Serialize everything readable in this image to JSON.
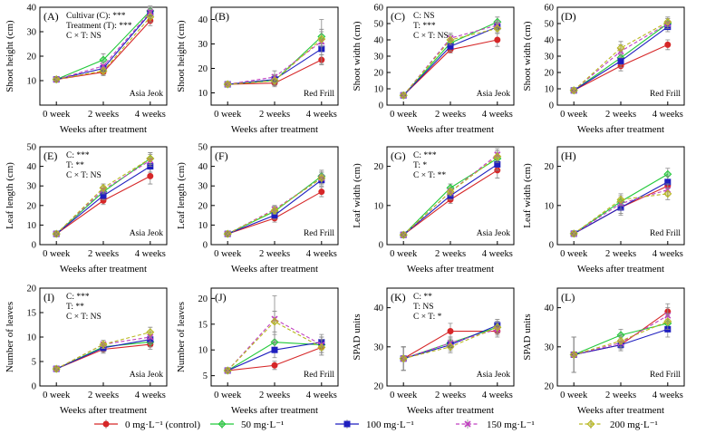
{
  "chart_data": {
    "type": "line",
    "x_categories": [
      "0 week",
      "2 weeks",
      "4 weeks"
    ],
    "series_defs": [
      {
        "key": "0",
        "name": "0 mg·L⁻¹ (control)",
        "color": "#d62728",
        "marker": "circle",
        "dash": "solid"
      },
      {
        "key": "50",
        "name": "50 mg·L⁻¹",
        "color": "#22c93a",
        "marker": "diamond",
        "dash": "solid"
      },
      {
        "key": "100",
        "name": "100 mg·L⁻¹",
        "color": "#1f1fbf",
        "marker": "square",
        "dash": "solid"
      },
      {
        "key": "150",
        "name": "150 mg·L⁻¹",
        "color": "#c040c0",
        "marker": "x",
        "dash": "dash"
      },
      {
        "key": "200",
        "name": "200 mg·L⁻¹",
        "color": "#b8b820",
        "marker": "diamond",
        "dash": "dash"
      }
    ],
    "panels": [
      {
        "id": "A",
        "label": "(A)",
        "ylabel": "Shoot height (cm)",
        "xlabel": "Weeks after treatment",
        "ylim": [
          0,
          40
        ],
        "yticks": [
          10,
          20,
          30,
          40
        ],
        "note": "Asia Jeok",
        "stats": [
          "Cultivar (C): ***",
          "Treatment (T): ***",
          "C × T: NS"
        ],
        "series": {
          "0": [
            10.5,
            13.5,
            34.5
          ],
          "50": [
            10.5,
            18.5,
            38.5
          ],
          "100": [
            10.5,
            15,
            37.5
          ],
          "150": [
            10.5,
            16,
            38
          ],
          "200": [
            10.5,
            14,
            36
          ]
        },
        "err": {
          "0": [
            0.5,
            1.5,
            2
          ],
          "50": [
            0.5,
            2.5,
            2
          ],
          "100": [
            0.5,
            1.5,
            2
          ],
          "150": [
            0.5,
            1.5,
            2
          ],
          "200": [
            0.5,
            1.5,
            2
          ]
        }
      },
      {
        "id": "B",
        "label": "(B)",
        "ylabel": "Shoot height (cm)",
        "xlabel": "Weeks after treatment",
        "ylim": [
          5,
          45
        ],
        "yticks": [
          10,
          20,
          30,
          40
        ],
        "note": "Red Frill",
        "stats": [],
        "series": {
          "0": [
            13.5,
            14,
            23.5
          ],
          "50": [
            13.5,
            15,
            33
          ],
          "100": [
            13.5,
            15.5,
            28
          ],
          "150": [
            13.5,
            16.5,
            31
          ],
          "200": [
            13.5,
            15,
            32
          ]
        },
        "err": {
          "0": [
            1,
            1.5,
            2
          ],
          "50": [
            1,
            2,
            3
          ],
          "100": [
            1,
            2,
            2.5
          ],
          "150": [
            1,
            2.5,
            9
          ],
          "200": [
            1,
            2,
            3
          ]
        }
      },
      {
        "id": "C",
        "label": "(C)",
        "ylabel": "Shoot width (cm)",
        "xlabel": "Weeks after treatment",
        "ylim": [
          0,
          60
        ],
        "yticks": [
          0,
          10,
          20,
          30,
          40,
          50,
          60
        ],
        "note": "Asia Jeok",
        "stats": [
          "C: NS",
          "T: ***",
          "C × T: NS"
        ],
        "series": {
          "0": [
            6,
            34,
            40
          ],
          "50": [
            6,
            38,
            51
          ],
          "100": [
            6,
            36,
            48
          ],
          "150": [
            6,
            41,
            49
          ],
          "200": [
            6,
            40,
            47
          ]
        },
        "err": {
          "0": [
            1,
            2,
            4
          ],
          "50": [
            1,
            3,
            3
          ],
          "100": [
            1,
            3,
            3
          ],
          "150": [
            1,
            3,
            3
          ],
          "200": [
            1,
            3,
            3
          ]
        }
      },
      {
        "id": "D",
        "label": "(D)",
        "ylabel": "Shoot width (cm)",
        "xlabel": "Weeks after treatment",
        "ylim": [
          0,
          60
        ],
        "yticks": [
          0,
          10,
          20,
          30,
          40,
          50,
          60
        ],
        "note": "Red Frill",
        "stats": [],
        "series": {
          "0": [
            9,
            24,
            37
          ],
          "50": [
            9,
            29,
            50
          ],
          "100": [
            9,
            27,
            48
          ],
          "150": [
            9,
            33,
            50
          ],
          "200": [
            9,
            35,
            51
          ]
        },
        "err": {
          "0": [
            1.5,
            3,
            3
          ],
          "50": [
            1.5,
            4,
            3
          ],
          "100": [
            1.5,
            4,
            3
          ],
          "150": [
            1.5,
            4,
            3
          ],
          "200": [
            1.5,
            4,
            3
          ]
        }
      },
      {
        "id": "E",
        "label": "(E)",
        "ylabel": "Leaf length (cm)",
        "xlabel": "Weeks after treatment",
        "ylim": [
          0,
          50
        ],
        "yticks": [
          0,
          10,
          20,
          30,
          40,
          50
        ],
        "note": "Asia Jeok",
        "stats": [
          "C: ***",
          "T: **",
          "C × T: NS"
        ],
        "series": {
          "0": [
            5.5,
            22.5,
            35
          ],
          "50": [
            5.5,
            27,
            44
          ],
          "100": [
            5.5,
            25,
            40
          ],
          "150": [
            5.5,
            28,
            43
          ],
          "200": [
            5.5,
            29,
            44
          ]
        },
        "err": {
          "0": [
            0.5,
            2,
            4
          ],
          "50": [
            0.5,
            2,
            3
          ],
          "100": [
            0.5,
            2,
            3
          ],
          "150": [
            0.5,
            2,
            3
          ],
          "200": [
            0.5,
            2,
            3
          ]
        }
      },
      {
        "id": "F",
        "label": "(F)",
        "ylabel": "Leaf length (cm)",
        "xlabel": "Weeks after treatment",
        "ylim": [
          0,
          50
        ],
        "yticks": [
          0,
          10,
          20,
          30,
          40,
          50
        ],
        "note": "Red Frill",
        "stats": [],
        "series": {
          "0": [
            5.5,
            13.5,
            27
          ],
          "50": [
            5.5,
            17,
            35
          ],
          "100": [
            5.5,
            15,
            33
          ],
          "150": [
            5.5,
            18,
            34
          ],
          "200": [
            5.5,
            17.5,
            34
          ]
        },
        "err": {
          "0": [
            0.5,
            2,
            2.5
          ],
          "50": [
            0.5,
            2,
            3
          ],
          "100": [
            0.5,
            2,
            3
          ],
          "150": [
            0.5,
            2,
            3
          ],
          "200": [
            0.5,
            2,
            3
          ]
        }
      },
      {
        "id": "G",
        "label": "(G)",
        "ylabel": "Leaf width (cm)",
        "xlabel": "Weeks after treatment",
        "ylim": [
          0,
          25
        ],
        "yticks": [
          0,
          10,
          20
        ],
        "note": "Asia Jeok",
        "stats": [
          "C: ***",
          "T: *",
          "C × T: **"
        ],
        "series": {
          "0": [
            2.5,
            11.5,
            19
          ],
          "50": [
            2.5,
            14.5,
            22
          ],
          "100": [
            2.5,
            12.5,
            20.5
          ],
          "150": [
            2.5,
            13.5,
            23
          ],
          "200": [
            2.5,
            13.5,
            22.5
          ]
        },
        "err": {
          "0": [
            0.3,
            1,
            2
          ],
          "50": [
            0.3,
            1,
            1.5
          ],
          "100": [
            0.3,
            1,
            1.5
          ],
          "150": [
            0.3,
            1,
            1.5
          ],
          "200": [
            0.3,
            1,
            1.5
          ]
        }
      },
      {
        "id": "H",
        "label": "(H)",
        "ylabel": "Leaf width (cm)",
        "xlabel": "Weeks after treatment",
        "ylim": [
          0,
          25
        ],
        "yticks": [
          0,
          10,
          20
        ],
        "note": "Red Frill",
        "stats": [],
        "series": {
          "0": [
            2.8,
            9.5,
            15
          ],
          "50": [
            2.8,
            11,
            18
          ],
          "100": [
            2.8,
            9.5,
            16
          ],
          "150": [
            2.8,
            10.5,
            14
          ],
          "200": [
            2.8,
            11.5,
            13
          ]
        },
        "err": {
          "0": [
            0.3,
            2,
            1.5
          ],
          "50": [
            0.3,
            1.5,
            1.5
          ],
          "100": [
            0.3,
            1.5,
            1.5
          ],
          "150": [
            0.3,
            1.5,
            1.5
          ],
          "200": [
            0.3,
            1.5,
            1.5
          ]
        }
      },
      {
        "id": "I",
        "label": "(I)",
        "ylabel": "Number of leaves",
        "xlabel": "Weeks after treatment",
        "ylim": [
          0,
          20
        ],
        "yticks": [
          0,
          5,
          10,
          15,
          20
        ],
        "note": "Asia Jeok",
        "stats": [
          "C: ***",
          "T: **",
          "C × T: NS"
        ],
        "series": {
          "0": [
            3.5,
            7.5,
            8.5
          ],
          "50": [
            3.5,
            8,
            9
          ],
          "100": [
            3.5,
            7.8,
            9.5
          ],
          "150": [
            3.5,
            8.5,
            10
          ],
          "200": [
            3.5,
            8.5,
            11
          ]
        },
        "err": {
          "0": [
            0.3,
            0.8,
            1
          ],
          "50": [
            0.3,
            0.8,
            1
          ],
          "100": [
            0.3,
            0.8,
            1
          ],
          "150": [
            0.3,
            0.8,
            1
          ],
          "200": [
            0.3,
            0.8,
            1
          ]
        }
      },
      {
        "id": "J",
        "label": "(J)",
        "ylabel": "Number of leaves",
        "xlabel": "Weeks after treatment",
        "ylim": [
          3,
          22
        ],
        "yticks": [
          5,
          10,
          15,
          20
        ],
        "note": "Red Frill",
        "stats": [],
        "series": {
          "0": [
            6,
            7,
            10.5
          ],
          "50": [
            6,
            11.5,
            11
          ],
          "100": [
            6,
            10,
            11.5
          ],
          "150": [
            6,
            16,
            11
          ],
          "200": [
            6,
            15.5,
            10.5
          ]
        },
        "err": {
          "0": [
            0.3,
            0.8,
            1.5
          ],
          "50": [
            0.3,
            1.5,
            1.5
          ],
          "100": [
            0.3,
            1.5,
            1.5
          ],
          "150": [
            0.3,
            4.5,
            1.5
          ],
          "200": [
            0.3,
            2,
            1.5
          ]
        }
      },
      {
        "id": "K",
        "label": "(K)",
        "ylabel": "SPAD units",
        "xlabel": "Weeks after treatment",
        "ylim": [
          20,
          45
        ],
        "yticks": [
          20,
          30,
          40
        ],
        "note": "Asia Jeok",
        "stats": [
          "C: **",
          "T: NS",
          "C × T: *"
        ],
        "series": {
          "0": [
            27,
            34,
            34
          ],
          "50": [
            27,
            31,
            35
          ],
          "100": [
            27,
            30.5,
            35.5
          ],
          "150": [
            27,
            31,
            34.5
          ],
          "200": [
            27,
            30,
            35
          ]
        },
        "err": {
          "0": [
            3,
            2,
            1.5
          ],
          "50": [
            3,
            1.5,
            1.5
          ],
          "100": [
            3,
            1.5,
            1.5
          ],
          "150": [
            3,
            1.5,
            1.5
          ],
          "200": [
            3,
            1.5,
            1.5
          ]
        }
      },
      {
        "id": "L",
        "label": "(L)",
        "ylabel": "SPAD units",
        "xlabel": "Weeks after treatment",
        "ylim": [
          20,
          45
        ],
        "yticks": [
          20,
          30,
          40
        ],
        "note": "Red Frill",
        "stats": [],
        "series": {
          "0": [
            28,
            30.5,
            39
          ],
          "50": [
            28,
            33,
            36
          ],
          "100": [
            28,
            30.5,
            34.5
          ],
          "150": [
            28,
            31,
            38
          ],
          "200": [
            28,
            31.5,
            36.5
          ]
        },
        "err": {
          "0": [
            4.5,
            1.5,
            2
          ],
          "50": [
            4.5,
            1.5,
            2
          ],
          "100": [
            4.5,
            1.5,
            2
          ],
          "150": [
            4.5,
            1.5,
            2
          ],
          "200": [
            4.5,
            1.5,
            2
          ]
        }
      }
    ]
  }
}
